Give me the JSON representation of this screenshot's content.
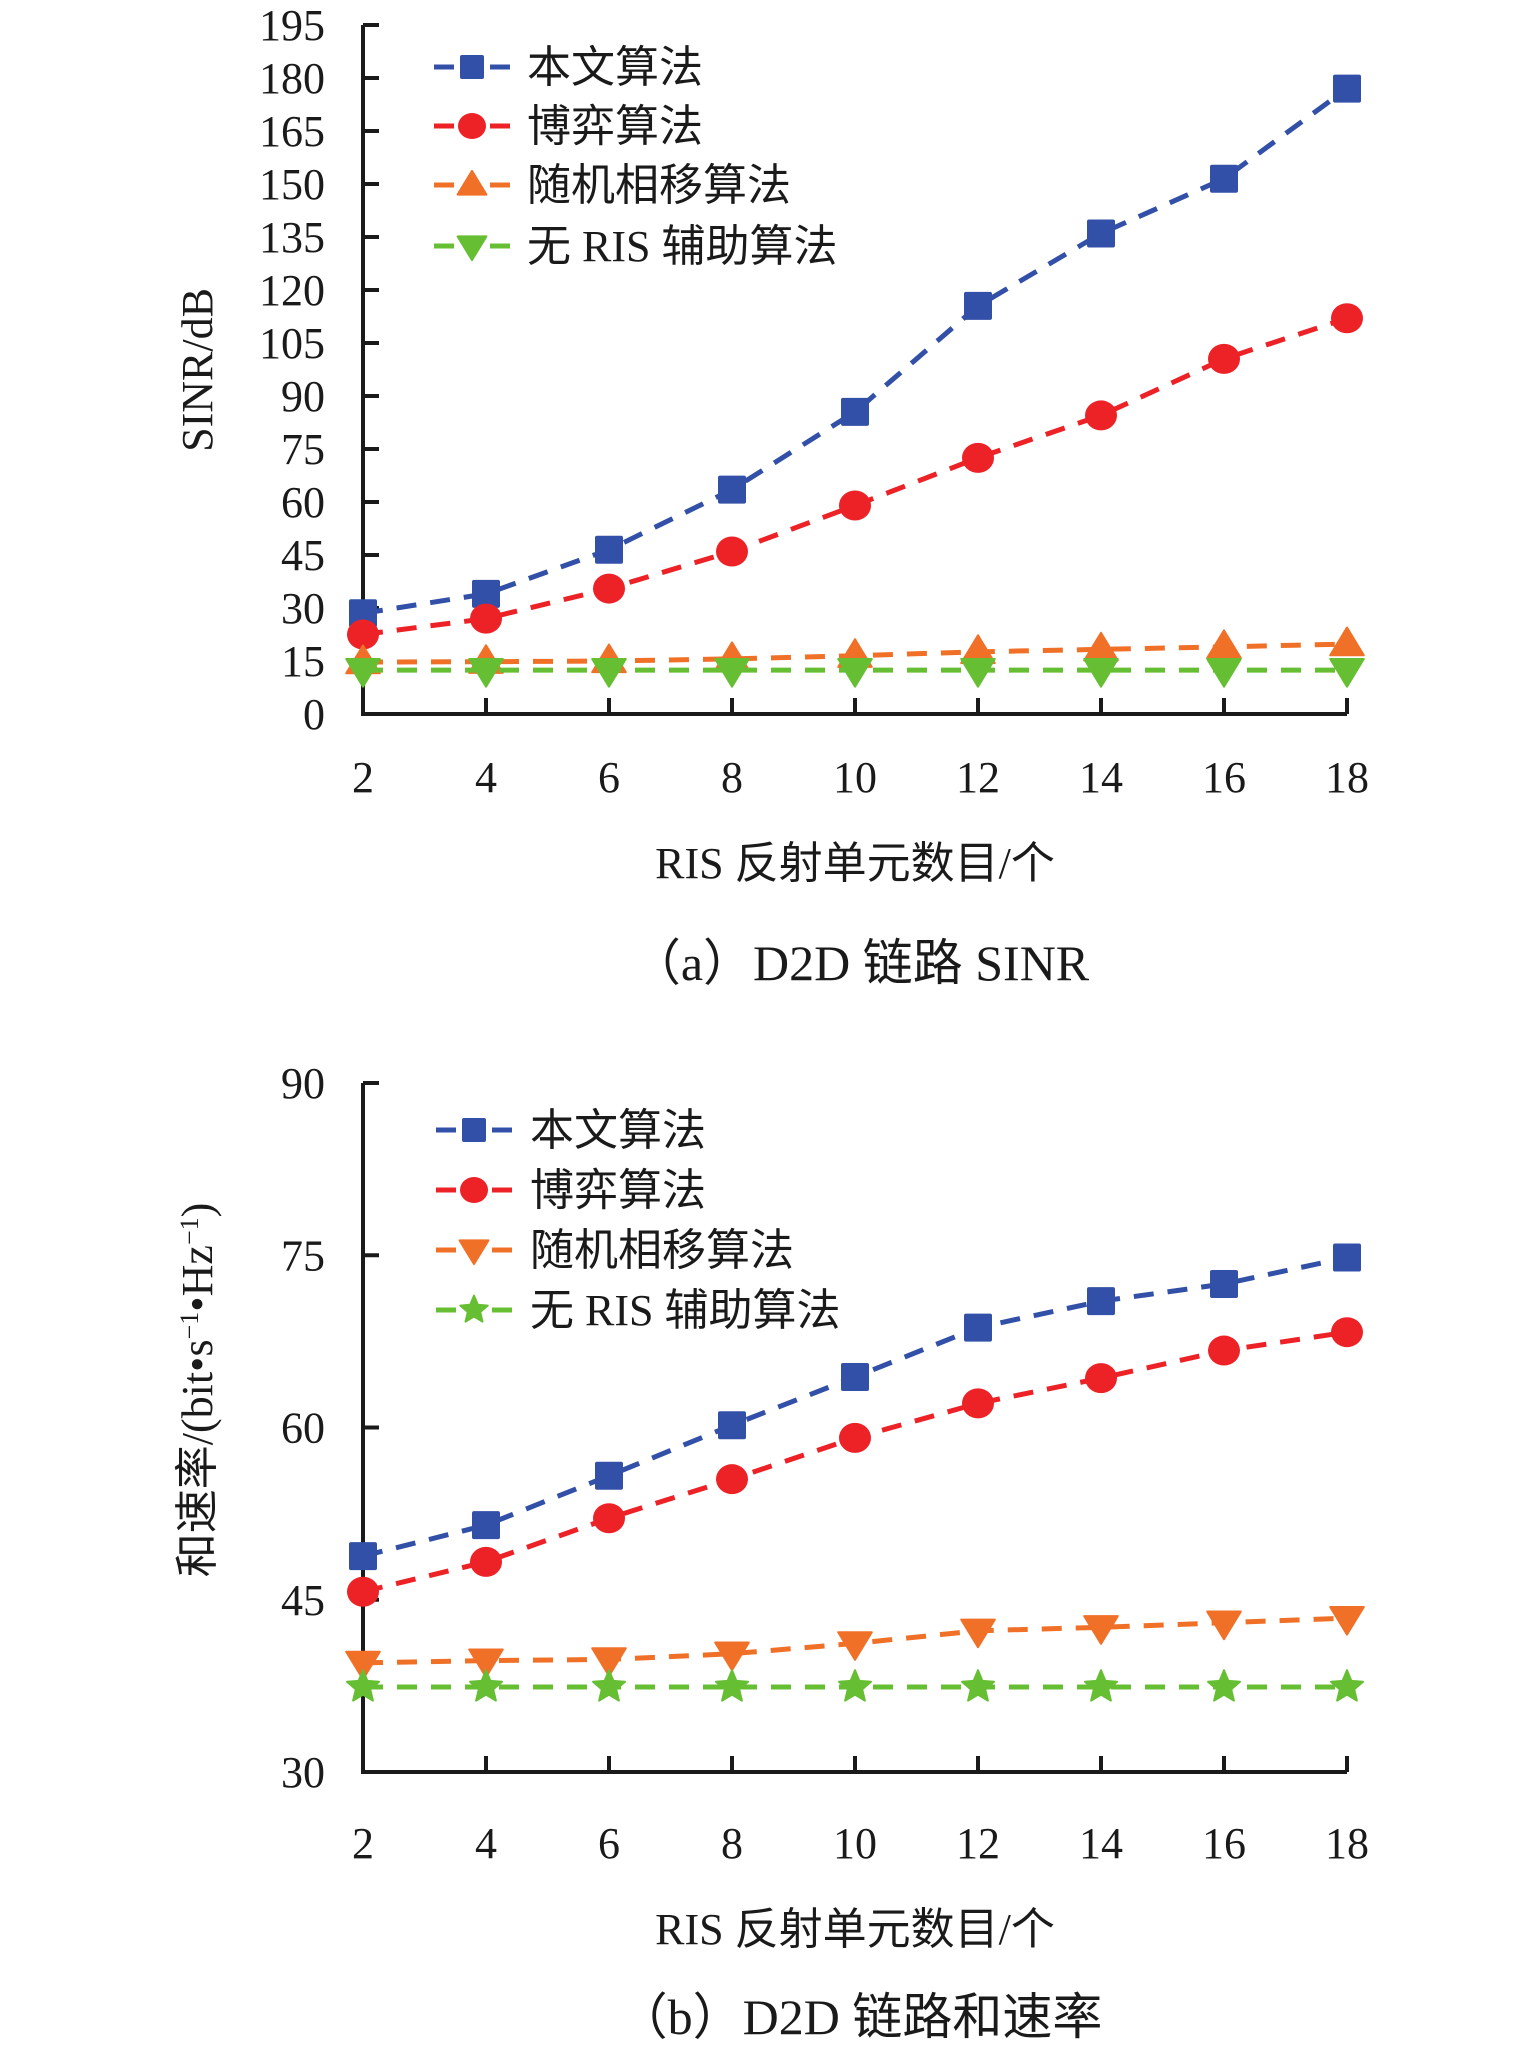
{
  "chart_data": [
    {
      "type": "line",
      "panel": "a",
      "title": "",
      "caption": "（a）D2D 链路 SINR",
      "xlabel": "RIS 反射单元数目/个",
      "ylabel": "SINR/dB",
      "x": [
        2,
        4,
        6,
        8,
        10,
        12,
        14,
        16,
        18
      ],
      "xticks": [
        "2",
        "4",
        "6",
        "8",
        "10",
        "12",
        "14",
        "16",
        "18"
      ],
      "xlim": [
        2,
        18
      ],
      "ylim": [
        0,
        195
      ],
      "yticks": [
        "0",
        "15",
        "30",
        "45",
        "60",
        "75",
        "90",
        "105",
        "120",
        "135",
        "150",
        "165",
        "180",
        "195"
      ],
      "grid": false,
      "legend_position": "top-left",
      "series": [
        {
          "name": "本文算法",
          "marker": "square",
          "color": "#3350A8",
          "values": [
            28.5,
            34.0,
            46.5,
            63.5,
            85.5,
            115.5,
            136.0,
            151.5,
            177.0
          ]
        },
        {
          "name": "博弈算法",
          "marker": "circle",
          "color": "#EC2227",
          "values": [
            22.5,
            27.0,
            35.5,
            46.0,
            59.0,
            72.5,
            84.5,
            100.5,
            112.0
          ]
        },
        {
          "name": "随机相移算法",
          "marker": "triangle-up",
          "color": "#F07028",
          "values": [
            14.7,
            14.8,
            15.0,
            15.6,
            16.5,
            17.6,
            18.3,
            19.0,
            19.8
          ]
        },
        {
          "name": "无 RIS 辅助算法",
          "marker": "triangle-down",
          "color": "#66BF33",
          "values": [
            12.4,
            12.4,
            12.4,
            12.4,
            12.4,
            12.4,
            12.4,
            12.4,
            12.4
          ]
        }
      ]
    },
    {
      "type": "line",
      "panel": "b",
      "title": "",
      "caption": "（b）D2D 链路和速率",
      "xlabel": "RIS 反射单元数目/个",
      "ylabel": "和速率/(bit•s⁻¹•Hz⁻¹)",
      "x": [
        2,
        4,
        6,
        8,
        10,
        12,
        14,
        16,
        18
      ],
      "xticks": [
        "2",
        "4",
        "6",
        "8",
        "10",
        "12",
        "14",
        "16",
        "18"
      ],
      "xlim": [
        2,
        18
      ],
      "ylim": [
        30,
        90
      ],
      "yticks": [
        "30",
        "45",
        "60",
        "75",
        "90"
      ],
      "grid": false,
      "legend_position": "top-left",
      "series": [
        {
          "name": "本文算法",
          "marker": "square",
          "color": "#3350A8",
          "values": [
            48.8,
            51.5,
            55.8,
            60.2,
            64.4,
            68.7,
            71.0,
            72.5,
            74.8
          ]
        },
        {
          "name": "博弈算法",
          "marker": "circle",
          "color": "#EC2227",
          "values": [
            45.7,
            48.3,
            52.1,
            55.5,
            59.1,
            62.1,
            64.3,
            66.7,
            68.3
          ]
        },
        {
          "name": "随机相移算法",
          "marker": "triangle-down",
          "color": "#F07028",
          "values": [
            39.5,
            39.7,
            39.8,
            40.3,
            41.2,
            42.3,
            42.6,
            43.0,
            43.4
          ]
        },
        {
          "name": "无 RIS 辅助算法",
          "marker": "star",
          "color": "#66BF33",
          "values": [
            37.4,
            37.4,
            37.4,
            37.4,
            37.4,
            37.4,
            37.4,
            37.4,
            37.4
          ]
        }
      ]
    }
  ]
}
